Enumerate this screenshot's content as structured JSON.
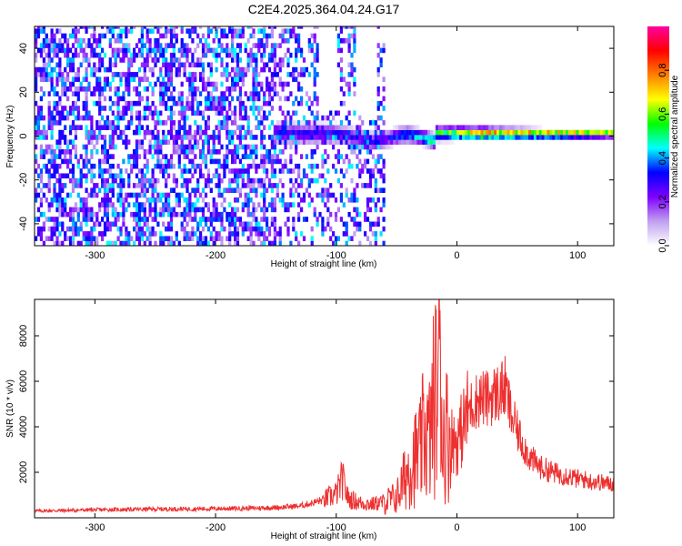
{
  "title": "C2E4.2025.364.04.24.G17",
  "chart_data": [
    {
      "type": "heatmap",
      "xlabel": "Height of straight line (km)",
      "ylabel": "Frequency (Hz)",
      "xlim": [
        -350,
        130
      ],
      "ylim": [
        -50,
        50
      ],
      "xticks": [
        -300,
        -200,
        -100,
        0,
        100
      ],
      "yticks": [
        -40,
        -20,
        0,
        20,
        40
      ],
      "xtick_labels": [
        "-300",
        "-200",
        "-100",
        "0",
        "100"
      ],
      "ytick_labels": [
        "-40",
        "-20",
        "0",
        "20",
        "40"
      ],
      "colorbar": {
        "label": "Normalized spectral amplitude",
        "range": [
          0,
          1
        ],
        "ticks": [
          0.0,
          0.2,
          0.4,
          0.6,
          0.8
        ],
        "tick_labels": [
          "0.0",
          "0.2",
          "0.4",
          "0.6",
          "0.8"
        ],
        "colormap_stops": [
          "#ffffff",
          "#c0a0f0",
          "#7f00ff",
          "#0000ff",
          "#00ffff",
          "#00ff00",
          "#ffff00",
          "#ff8000",
          "#ff0000",
          "#ff00a0"
        ]
      },
      "description": "Noise (amp 0.1-0.45) scattered over -350..-60 km; signal band centered near 0 Hz from -150 km rightward, amplitude rising to ~0.9 past 0 km; blank gaps near -115..-100 and -85..-68 km above 10 Hz.",
      "features": [
        {
          "name": "noise-field",
          "x_range": [
            -350,
            -60
          ],
          "y_range": [
            -50,
            50
          ],
          "amp_range": [
            0.1,
            0.45
          ]
        },
        {
          "name": "signal-band",
          "x_range": [
            -150,
            130
          ],
          "center_hz": 0,
          "halfwidth_hz": [
            6,
            2
          ],
          "amp_range": [
            0.35,
            0.9
          ]
        },
        {
          "name": "vertical-streak",
          "x": -330,
          "y_range": [
            -50,
            45
          ],
          "amp": 0.3
        }
      ]
    },
    {
      "type": "line",
      "xlabel": "Height of straight line (km)",
      "ylabel": "SNR (10 * v/v)",
      "xlim": [
        -350,
        130
      ],
      "ylim": [
        0,
        9600
      ],
      "xticks": [
        -300,
        -200,
        -100,
        0,
        100
      ],
      "yticks": [
        2000,
        4000,
        6000,
        8000
      ],
      "xtick_labels": [
        "-300",
        "-200",
        "-100",
        "0",
        "100"
      ],
      "ytick_labels": [
        "2000",
        "4000",
        "6000",
        "8000"
      ],
      "series": [
        {
          "name": "SNR",
          "color": "#ee3030",
          "x": [
            -350,
            -300,
            -250,
            -200,
            -170,
            -150,
            -130,
            -120,
            -110,
            -100,
            -95,
            -90,
            -80,
            -70,
            -60,
            -50,
            -45,
            -40,
            -35,
            -30,
            -27,
            -25,
            -22,
            -20,
            -17,
            -15,
            -14,
            -13,
            -12,
            -10,
            -8,
            -5,
            0,
            5,
            10,
            15,
            20,
            25,
            30,
            35,
            40,
            45,
            50,
            55,
            60,
            65,
            70,
            75,
            80,
            85,
            90,
            95,
            100,
            105,
            110,
            115,
            120,
            125,
            130
          ],
          "values": [
            300,
            350,
            380,
            400,
            420,
            450,
            520,
            650,
            800,
            1050,
            1700,
            850,
            650,
            600,
            700,
            900,
            1500,
            2200,
            2600,
            2900,
            4000,
            3500,
            3500,
            4800,
            5600,
            6000,
            9400,
            6000,
            3200,
            3900,
            3700,
            3500,
            3300,
            4000,
            4800,
            5100,
            5300,
            5200,
            5400,
            5500,
            5700,
            4500,
            3800,
            3200,
            2700,
            2400,
            2200,
            2100,
            2000,
            1900,
            1900,
            1800,
            1700,
            1700,
            1600,
            1600,
            1550,
            1500,
            1500
          ]
        }
      ]
    }
  ]
}
